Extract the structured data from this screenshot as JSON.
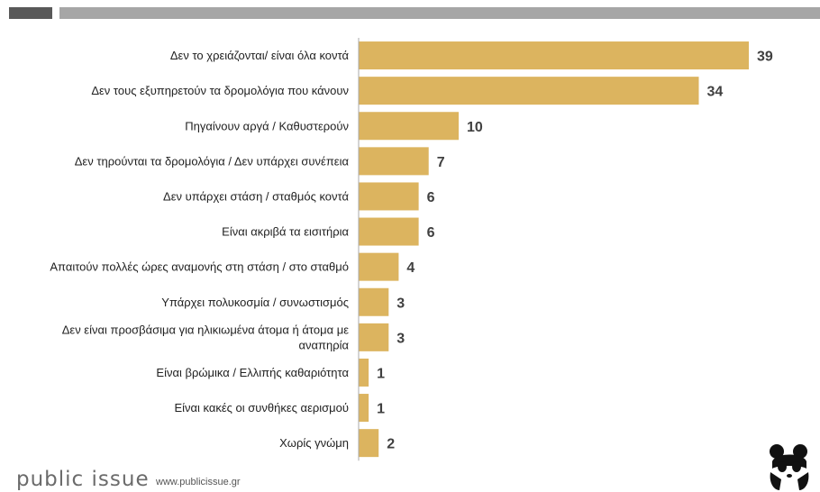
{
  "colors": {
    "bar": "#dcb45f",
    "axis": "#aaaaaa",
    "top_bar_dark": "#595959",
    "top_bar_light": "#a6a6a6"
  },
  "footer": {
    "brand": "public issue",
    "url": "www.publicissue.gr",
    "logo_icon": "panda-icon"
  },
  "chart_data": {
    "type": "bar",
    "orientation": "horizontal",
    "categories": [
      [
        "Δεν το χρειάζονται/ είναι όλα κοντά"
      ],
      [
        "Δεν τους εξυπηρετούν τα δρομολόγια που κάνουν"
      ],
      [
        "Πηγαίνουν αργά / Καθυστερούν"
      ],
      [
        "Δεν τηρούνται τα δρομολόγια / Δεν υπάρχει συνέπεια"
      ],
      [
        "Δεν υπάρχει στάση / σταθμός κοντά"
      ],
      [
        "Είναι ακριβά τα εισιτήρια"
      ],
      [
        "Απαιτούν πολλές ώρες αναμονής στη στάση / στο σταθμό"
      ],
      [
        "Υπάρχει πολυκοσμία / συνωστισμός"
      ],
      [
        "Δεν είναι προσβάσιμα για ηλικιωμένα άτομα ή άτομα με",
        "αναπηρία"
      ],
      [
        "Είναι βρώμικα / Ελλιπής καθαριότητα"
      ],
      [
        "Είναι κακές οι συνθήκες αερισμού"
      ],
      [
        "Χωρίς γνώμη"
      ]
    ],
    "values": [
      39,
      34,
      10,
      7,
      6,
      6,
      4,
      3,
      3,
      1,
      1,
      2
    ],
    "xlim": [
      0,
      39
    ],
    "grid": false,
    "legend": "none"
  }
}
